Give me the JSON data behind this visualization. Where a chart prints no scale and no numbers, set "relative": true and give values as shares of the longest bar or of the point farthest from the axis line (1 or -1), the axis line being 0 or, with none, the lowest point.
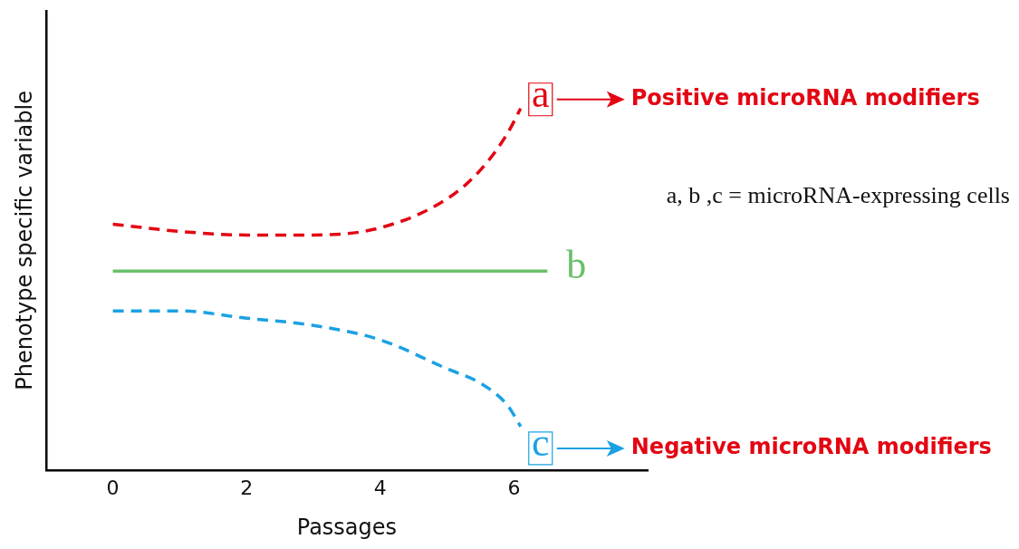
{
  "chart_data": {
    "type": "line",
    "relative": true,
    "xlabel": "Passages",
    "ylabel": "Phenotype specific variable",
    "xlim": [
      -1,
      8
    ],
    "xticks": [
      0,
      2,
      4,
      6
    ],
    "grid": false,
    "legend": "right",
    "marker": "none",
    "series": [
      {
        "name": "a",
        "color": "#e30613",
        "line_style": "dashed",
        "x": [
          0,
          1,
          2,
          3,
          4,
          5,
          5.5,
          5.9,
          6.1
        ],
        "values": [
          0.68,
          0.66,
          0.65,
          0.65,
          0.67,
          0.75,
          0.83,
          0.93,
          1.0
        ]
      },
      {
        "name": "b",
        "color": "#6abf69",
        "line_style": "solid",
        "x": [
          0,
          6.5
        ],
        "values": [
          0.55,
          0.55
        ]
      },
      {
        "name": "c",
        "color": "#1ba1e2",
        "line_style": "dashed",
        "x": [
          0,
          1,
          2,
          3,
          4,
          5,
          5.5,
          5.9,
          6.1
        ],
        "values": [
          0.44,
          0.44,
          0.42,
          0.4,
          0.36,
          0.28,
          0.24,
          0.18,
          0.12
        ]
      }
    ],
    "annotations": [
      "Positive microRNA modifiers",
      "a, b ,c = microRNA-expressing cells",
      "Negative microRNA modifiers"
    ]
  }
}
